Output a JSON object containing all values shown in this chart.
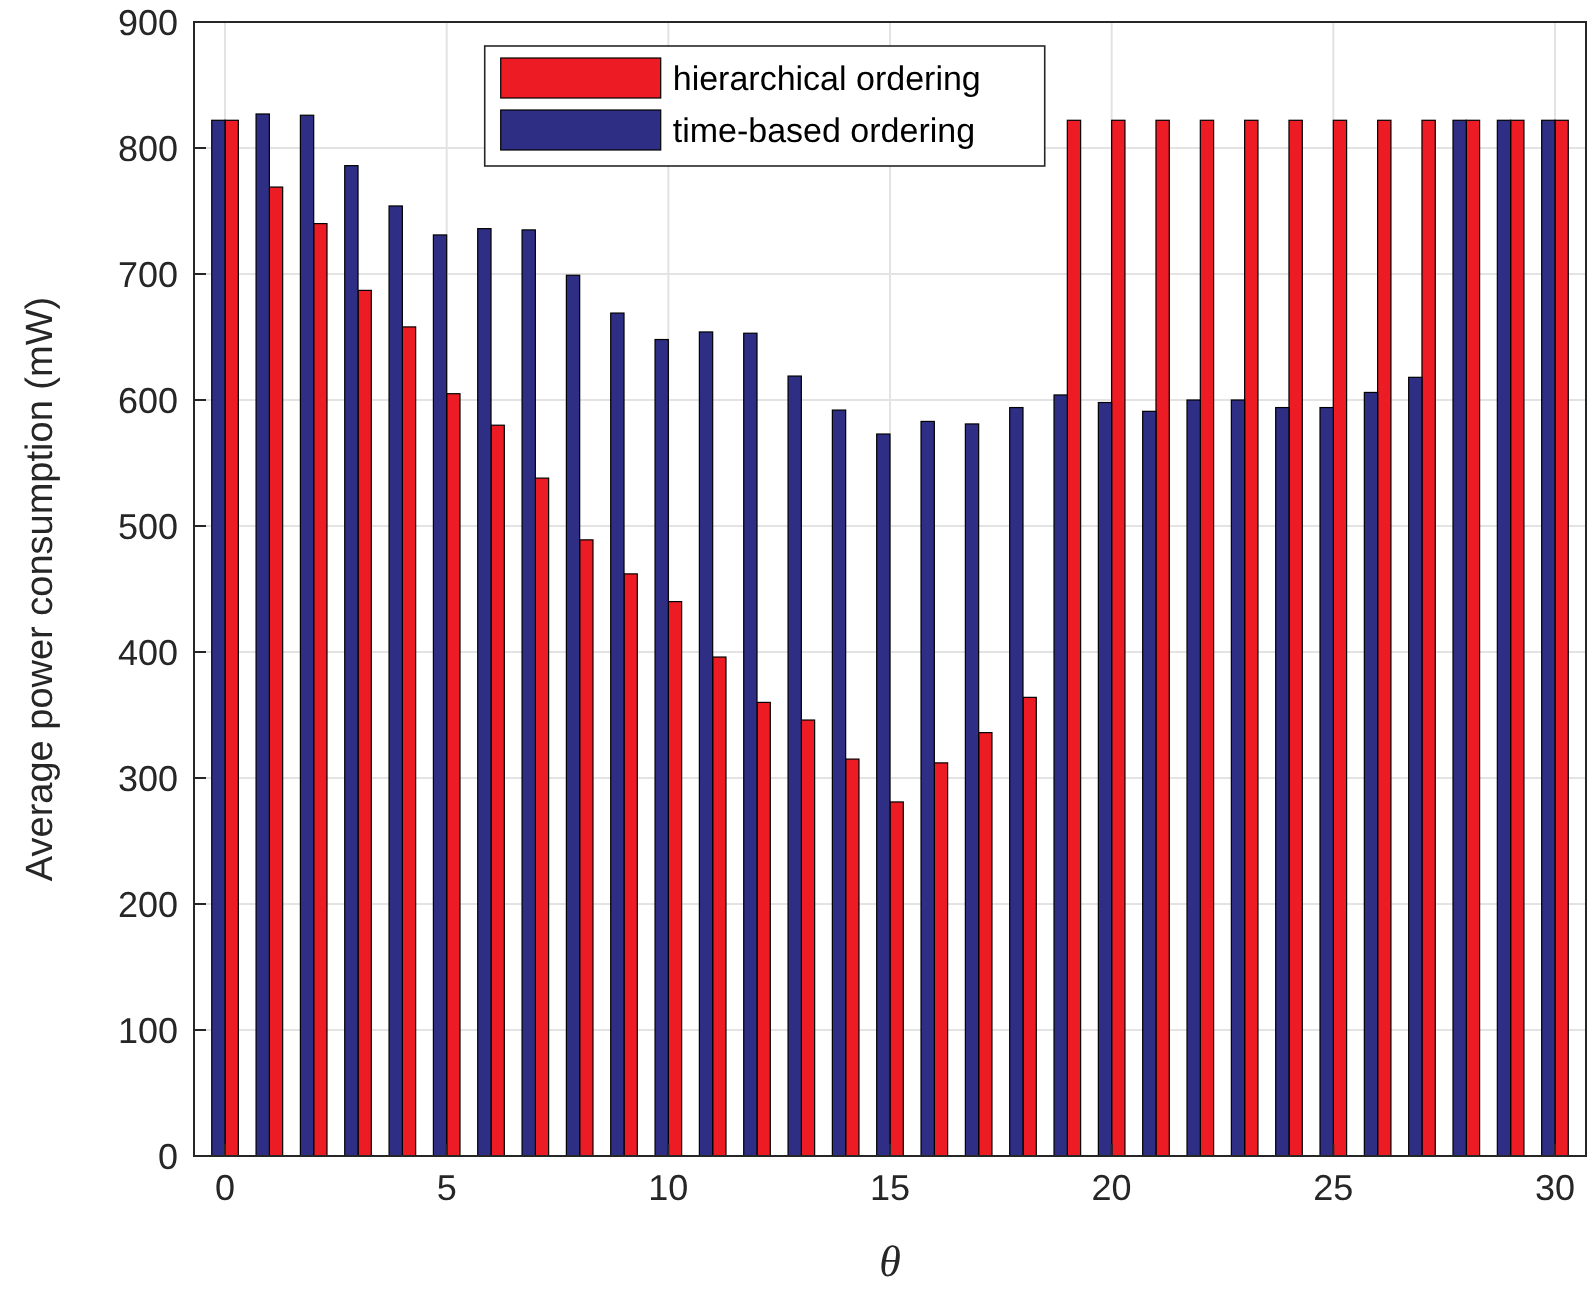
{
  "chart_data": {
    "type": "bar",
    "xlabel": "θ",
    "ylabel": "Average power consumption (mW)",
    "x": [
      0,
      1,
      2,
      3,
      4,
      5,
      6,
      7,
      8,
      9,
      10,
      11,
      12,
      13,
      14,
      15,
      16,
      17,
      18,
      19,
      20,
      21,
      22,
      23,
      24,
      25,
      26,
      27,
      28,
      29,
      30
    ],
    "series": [
      {
        "name": "hierarchical ordering",
        "color": "#ed1c24",
        "values": [
          822,
          769,
          740,
          687,
          658,
          605,
          580,
          538,
          489,
          462,
          440,
          396,
          360,
          346,
          315,
          281,
          312,
          336,
          364,
          822,
          822,
          822,
          822,
          822,
          822,
          822,
          822,
          822,
          822,
          822,
          822
        ]
      },
      {
        "name": "time-based ordering",
        "color": "#2e2e85",
        "values": [
          822,
          827,
          826,
          786,
          754,
          731,
          736,
          735,
          699,
          669,
          648,
          654,
          653,
          619,
          592,
          573,
          583,
          581,
          594,
          604,
          598,
          591,
          600,
          600,
          594,
          594,
          606,
          618,
          822,
          822,
          822
        ]
      }
    ],
    "xlim": [
      -0.7,
      30.7
    ],
    "xticks": [
      0,
      5,
      10,
      15,
      20,
      25,
      30
    ],
    "ylim": [
      0,
      900
    ],
    "yticks": [
      0,
      100,
      200,
      300,
      400,
      500,
      600,
      700,
      800,
      900
    ],
    "grid": true,
    "legend": "top"
  }
}
